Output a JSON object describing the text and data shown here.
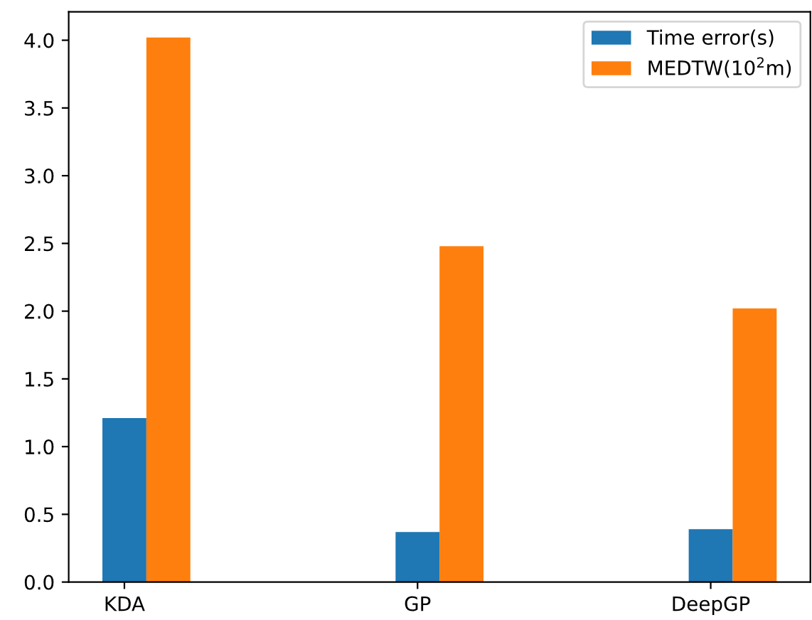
{
  "chart_data": {
    "type": "bar",
    "categories": [
      "KDA",
      "GP",
      "DeepGP"
    ],
    "series": [
      {
        "name": "Time error(s)",
        "color": "#1f77b4",
        "values": [
          1.21,
          0.37,
          0.39
        ]
      },
      {
        "name": "MEDTW(10$^{2}$m)",
        "color": "#ff7f0e",
        "values": [
          4.02,
          2.48,
          2.02
        ]
      }
    ],
    "ylim": [
      0,
      4.21
    ],
    "yticks": [
      {
        "value": 0,
        "label": "0.0"
      },
      0.5,
      {
        "value": 1,
        "label": "1.0"
      },
      1.5,
      {
        "value": 2,
        "label": "2.0"
      },
      2.5,
      {
        "value": 3,
        "label": "3.0"
      },
      3.5,
      {
        "value": 4,
        "label": "4.0"
      }
    ],
    "legend": "top right",
    "grid": false
  }
}
